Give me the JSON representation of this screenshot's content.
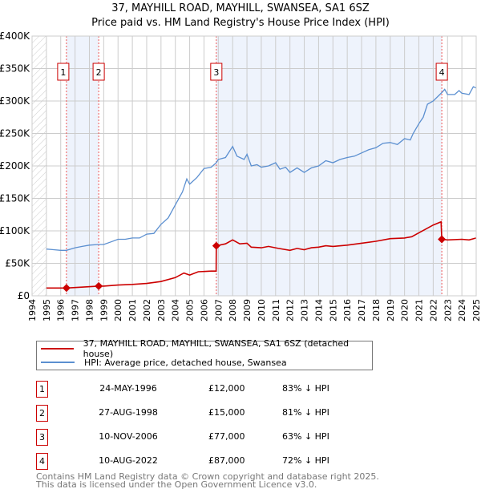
{
  "chart_data": {
    "type": "line",
    "title": "37, MAYHILL ROAD, MAYHILL, SWANSEA, SA1 6SZ",
    "subtitle": "Price paid vs. HM Land Registry's House Price Index (HPI)",
    "xlim": [
      1994,
      2025
    ],
    "ylim": [
      0,
      400000
    ],
    "x_ticks": [
      "1994",
      "1995",
      "1996",
      "1997",
      "1998",
      "1999",
      "2000",
      "2001",
      "2002",
      "2003",
      "2004",
      "2005",
      "2006",
      "2007",
      "2008",
      "2009",
      "2010",
      "2011",
      "2012",
      "2013",
      "2014",
      "2015",
      "2016",
      "2017",
      "2018",
      "2019",
      "2020",
      "2021",
      "2022",
      "2023",
      "2024",
      "2025"
    ],
    "y_ticks": [
      {
        "v": 0,
        "label": "£0"
      },
      {
        "v": 50000,
        "label": "£50K"
      },
      {
        "v": 100000,
        "label": "£100K"
      },
      {
        "v": 150000,
        "label": "£150K"
      },
      {
        "v": 200000,
        "label": "£200K"
      },
      {
        "v": 250000,
        "label": "£250K"
      },
      {
        "v": 300000,
        "label": "£300K"
      },
      {
        "v": 350000,
        "label": "£350K"
      },
      {
        "v": 400000,
        "label": "£400K"
      }
    ],
    "grid": true,
    "series": [
      {
        "name": "37, MAYHILL ROAD, MAYHILL, SWANSEA, SA1 6SZ (detached house)",
        "color": "#cc0000",
        "x": [
          1995,
          1996.4,
          1998.65,
          1999,
          2000,
          2001,
          2002,
          2003,
          2004,
          2004.6,
          2005,
          2005.6,
          2006.5,
          2006.85,
          2006.86,
          2007.5,
          2008,
          2008.5,
          2009,
          2009.3,
          2010,
          2010.5,
          2011.2,
          2012,
          2012.5,
          2013,
          2013.5,
          2014,
          2014.5,
          2015,
          2016,
          2017,
          2018,
          2019,
          2020,
          2020.5,
          2021,
          2021.5,
          2022,
          2022.55,
          2022.6,
          2023,
          2024,
          2024.5,
          2025
        ],
        "y": [
          12000,
          12000,
          15000,
          15000,
          16500,
          17500,
          19000,
          22000,
          28000,
          35000,
          32000,
          37000,
          38000,
          38000,
          77000,
          80000,
          86000,
          80000,
          81000,
          75000,
          74000,
          76000,
          73000,
          70000,
          73000,
          71000,
          74000,
          75000,
          77000,
          76000,
          78000,
          81000,
          84000,
          88000,
          89000,
          91000,
          97000,
          103000,
          109000,
          114000,
          87000,
          86000,
          87000,
          86000,
          89000
        ]
      },
      {
        "name": "HPI: Average price, detached house, Swansea",
        "color": "#5b8fd0",
        "x": [
          1995,
          1995.5,
          1996,
          1996.4,
          1997,
          1997.5,
          1998,
          1998.65,
          1999,
          1999.5,
          2000,
          2000.5,
          2001,
          2001.5,
          2002,
          2002.5,
          2003,
          2003.5,
          2004,
          2004.5,
          2004.8,
          2005,
          2005.5,
          2006,
          2006.5,
          2006.86,
          2007,
          2007.5,
          2008,
          2008.3,
          2008.8,
          2009,
          2009.3,
          2009.7,
          2010,
          2010.5,
          2011,
          2011.3,
          2011.7,
          2012,
          2012.5,
          2013,
          2013.5,
          2014,
          2014.5,
          2015,
          2015.5,
          2016,
          2016.5,
          2017,
          2017.5,
          2018,
          2018.5,
          2019,
          2019.5,
          2020,
          2020.4,
          2020.6,
          2021,
          2021.3,
          2021.6,
          2022,
          2022.6,
          2022.8,
          2023,
          2023.5,
          2023.8,
          2024,
          2024.5,
          2024.8,
          2025
        ],
        "y": [
          72000,
          71000,
          70000,
          70000,
          74000,
          76000,
          78000,
          79000,
          79000,
          83000,
          87000,
          87000,
          89000,
          89000,
          95000,
          96000,
          110000,
          120000,
          140000,
          160000,
          180000,
          172000,
          182000,
          196000,
          198000,
          205000,
          210000,
          213000,
          230000,
          215000,
          210000,
          218000,
          200000,
          202000,
          198000,
          200000,
          205000,
          195000,
          198000,
          190000,
          197000,
          190000,
          197000,
          200000,
          208000,
          205000,
          210000,
          213000,
          215000,
          220000,
          225000,
          228000,
          235000,
          236000,
          233000,
          242000,
          240000,
          250000,
          265000,
          275000,
          295000,
          300000,
          313000,
          318000,
          310000,
          310000,
          316000,
          312000,
          310000,
          322000,
          320000
        ]
      }
    ],
    "transactions": [
      {
        "num": "1",
        "x": 1996.4,
        "y": 12000
      },
      {
        "num": "2",
        "x": 1998.65,
        "y": 15000
      },
      {
        "num": "3",
        "x": 2006.86,
        "y": 77000
      },
      {
        "num": "4",
        "x": 2022.6,
        "y": 87000
      }
    ],
    "shaded_ranges": [
      [
        1996.4,
        1998.65
      ],
      [
        2006.86,
        2022.6
      ]
    ],
    "hatched_range": [
      1994,
      1995
    ],
    "legend_placement": "below"
  },
  "table": [
    {
      "num": "1",
      "date": "24-MAY-1996",
      "price": "£12,000",
      "hpi": "83% ↓ HPI"
    },
    {
      "num": "2",
      "date": "27-AUG-1998",
      "price": "£15,000",
      "hpi": "81% ↓ HPI"
    },
    {
      "num": "3",
      "date": "10-NOV-2006",
      "price": "£77,000",
      "hpi": "63% ↓ HPI"
    },
    {
      "num": "4",
      "date": "10-AUG-2022",
      "price": "£87,000",
      "hpi": "72% ↓ HPI"
    }
  ],
  "footer": {
    "line1": "Contains HM Land Registry data © Crown copyright and database right 2025.",
    "line2": "This data is licensed under the Open Government Licence v3.0."
  }
}
